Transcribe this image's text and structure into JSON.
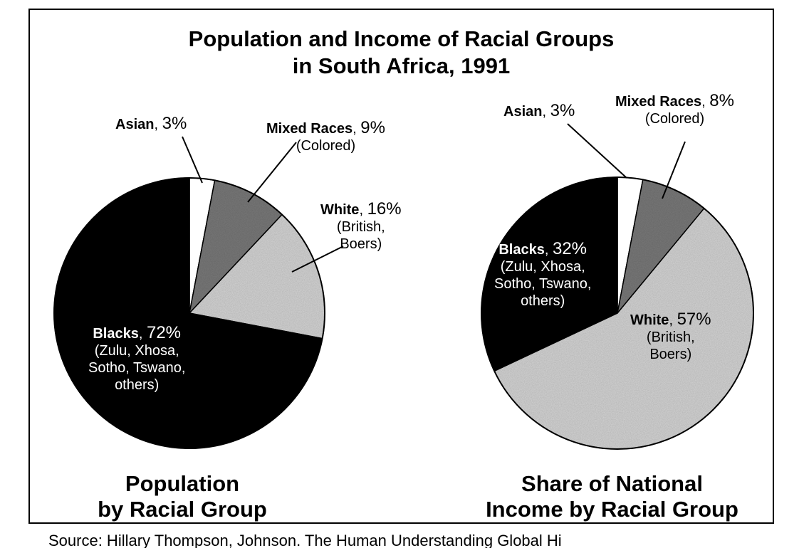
{
  "figure": {
    "title_line_1": "Population and Income of Racial Groups",
    "title_line_2": "in South Africa, 1991",
    "source_line": "Source: Hillary Thompson, Johnson. The Human Understanding Global Hi"
  },
  "chart_data": [
    {
      "type": "pie",
      "caption_line_1": "Population",
      "caption_line_2": "by Racial Group",
      "slices": [
        {
          "name": "Asian",
          "value": 3,
          "value_label": "3%",
          "detail_lines": [],
          "color": "#ffffff"
        },
        {
          "name": "Mixed Races",
          "value": 9,
          "value_label": "9%",
          "detail_lines": [
            "(Colored)"
          ],
          "color": "#777777"
        },
        {
          "name": "White",
          "value": 16,
          "value_label": "16%",
          "detail_lines": [
            "(British,",
            "Boers)"
          ],
          "color": "#d0d0d0"
        },
        {
          "name": "Blacks",
          "value": 72,
          "value_label": "72%",
          "detail_lines": [
            "(Zulu, Xhosa,",
            "Sotho, Tswano,",
            "others)"
          ],
          "color": "#000000"
        }
      ]
    },
    {
      "type": "pie",
      "caption_line_1": "Share of National",
      "caption_line_2": "Income by Racial Group",
      "slices": [
        {
          "name": "Asian",
          "value": 3,
          "value_label": "3%",
          "detail_lines": [],
          "color": "#ffffff"
        },
        {
          "name": "Mixed Races",
          "value": 8,
          "value_label": "8%",
          "detail_lines": [
            "(Colored)"
          ],
          "color": "#777777"
        },
        {
          "name": "White",
          "value": 57,
          "value_label": "57%",
          "detail_lines": [
            "(British,",
            "Boers)"
          ],
          "color": "#d0d0d0"
        },
        {
          "name": "Blacks",
          "value": 32,
          "value_label": "32%",
          "detail_lines": [
            "(Zulu, Xhosa,",
            "Sotho, Tswano,",
            "others)"
          ],
          "color": "#000000"
        }
      ]
    }
  ]
}
